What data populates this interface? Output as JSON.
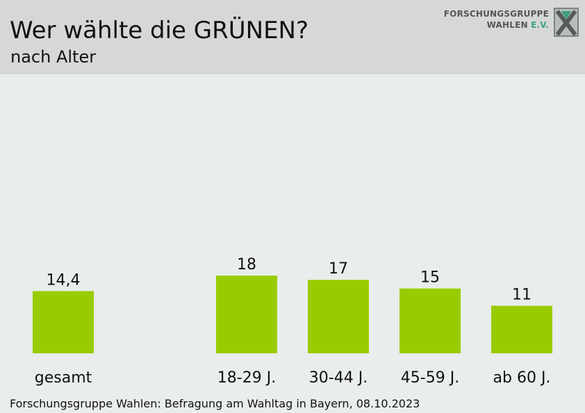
{
  "header": {
    "title": "Wer wählte die GRÜNEN?",
    "subtitle": "nach Alter"
  },
  "logo": {
    "line1": "FORSCHUNGSGRUPPE",
    "line2_main": "WAHLEN",
    "line2_accent": "E.V.",
    "icon": "fgw-logo-x-icon"
  },
  "footer": {
    "source": "Forschungsgruppe Wahlen: Befragung am Wahltag in Bayern, 08.10.2023"
  },
  "colors": {
    "bar": "#99cc00",
    "background": "#e9edeb",
    "header": "#d6d8d7",
    "text": "#111111"
  },
  "chart_data": {
    "type": "bar",
    "categories": [
      "gesamt",
      "18-29 J.",
      "30-44 J.",
      "45-59 J.",
      "ab 60 J."
    ],
    "values": [
      14.4,
      18,
      17,
      15,
      11
    ],
    "value_labels": [
      "14,4",
      "18",
      "17",
      "15",
      "11"
    ],
    "title": "",
    "xlabel": "",
    "ylabel": "",
    "ylim": [
      0,
      18
    ],
    "grid": false,
    "legend": "none"
  }
}
